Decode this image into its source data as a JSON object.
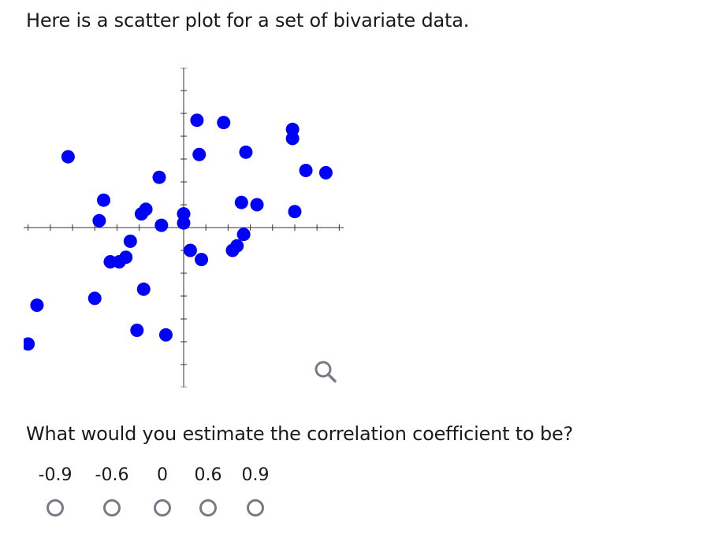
{
  "prompt": "Here is a scatter plot for a set of bivariate data.",
  "question": "What would you estimate the correlation coefficient to be?",
  "choices": [
    "-0.9",
    "-0.6",
    "0",
    "0.6",
    "0.9"
  ],
  "icons": {
    "zoom": "magnifier-icon"
  },
  "colors": {
    "points": "#0000ff",
    "axes": "#333333",
    "radio_border": "#7a7a86"
  },
  "chart_data": {
    "type": "scatter",
    "title": "",
    "xlabel": "",
    "ylabel": "",
    "xlim": [
      -7.2,
      7.2
    ],
    "ylim": [
      -7,
      7
    ],
    "x_ticks": [
      -7,
      -6,
      -5,
      -4,
      -3,
      -2,
      -1,
      1,
      2,
      3,
      4,
      5,
      6,
      7
    ],
    "y_ticks": [
      -7,
      -6,
      -5,
      -4,
      -3,
      -2,
      -1,
      1,
      2,
      3,
      4,
      5,
      6,
      7
    ],
    "grid": false,
    "points": [
      {
        "x": -7.0,
        "y": -5.1
      },
      {
        "x": -6.6,
        "y": -3.4
      },
      {
        "x": -5.2,
        "y": 3.1
      },
      {
        "x": -4.0,
        "y": -3.1
      },
      {
        "x": -3.8,
        "y": 0.3
      },
      {
        "x": -3.6,
        "y": 1.2
      },
      {
        "x": -3.3,
        "y": -1.5
      },
      {
        "x": -2.9,
        "y": -1.5
      },
      {
        "x": -2.6,
        "y": -1.3
      },
      {
        "x": -2.4,
        "y": -0.6
      },
      {
        "x": -2.1,
        "y": -4.5
      },
      {
        "x": -1.9,
        "y": 0.6
      },
      {
        "x": -1.7,
        "y": 0.8
      },
      {
        "x": -1.8,
        "y": -2.7
      },
      {
        "x": -1.1,
        "y": 2.2
      },
      {
        "x": -1.0,
        "y": 0.1
      },
      {
        "x": -0.8,
        "y": -4.7
      },
      {
        "x": 0.0,
        "y": 0.6
      },
      {
        "x": 0.0,
        "y": 0.2
      },
      {
        "x": 0.3,
        "y": -1.0
      },
      {
        "x": 0.6,
        "y": 4.7
      },
      {
        "x": 0.7,
        "y": 3.2
      },
      {
        "x": 0.8,
        "y": -1.4
      },
      {
        "x": 1.8,
        "y": 4.6
      },
      {
        "x": 2.2,
        "y": -1.0
      },
      {
        "x": 2.4,
        "y": -0.8
      },
      {
        "x": 2.6,
        "y": 1.1
      },
      {
        "x": 2.7,
        "y": -0.3
      },
      {
        "x": 2.8,
        "y": 3.3
      },
      {
        "x": 3.3,
        "y": 1.0
      },
      {
        "x": 4.9,
        "y": 4.3
      },
      {
        "x": 4.9,
        "y": 3.9
      },
      {
        "x": 5.0,
        "y": 0.7
      },
      {
        "x": 5.5,
        "y": 2.5
      },
      {
        "x": 6.4,
        "y": 2.4
      }
    ]
  }
}
